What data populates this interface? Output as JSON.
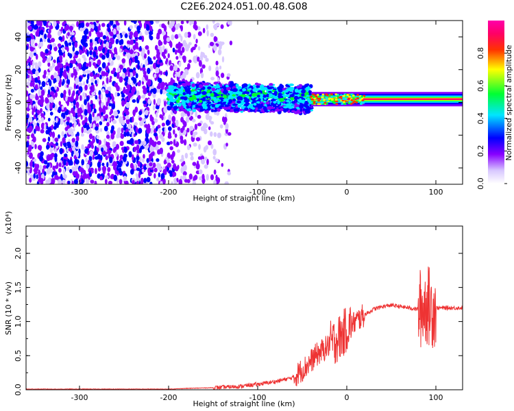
{
  "title": "C2E6.2024.051.00.48.G08",
  "chart_data": [
    {
      "type": "heatmap",
      "xlabel": "Height of straight line (km)",
      "ylabel": "Frequency (Hz)",
      "xlim": [
        -360,
        130
      ],
      "ylim": [
        -50,
        50
      ],
      "x_ticks": [
        -300,
        -200,
        -100,
        0,
        100
      ],
      "y_ticks": [
        -40,
        -20,
        0,
        20,
        40
      ],
      "colorbar": {
        "label": "Normalized spectral amplitude",
        "range": [
          0,
          1
        ],
        "ticks": [
          0.0,
          0.2,
          0.4,
          0.6,
          0.8
        ],
        "colormap": "rainbow (white-violet-blue-cyan-green-yellow-red-magenta)"
      },
      "features": [
        {
          "x_range": [
            -360,
            -170
          ],
          "freq_range": [
            -50,
            50
          ],
          "amplitude": [
            0.02,
            0.25
          ]
        },
        {
          "x_range": [
            -200,
            -40
          ],
          "freq_center": 4,
          "freq_halfwidth": 7,
          "amplitude": [
            0.2,
            0.55
          ]
        },
        {
          "x_range": [
            -40,
            130
          ],
          "freq_center": 2,
          "freq_halfwidth": 2,
          "amplitude": [
            0.6,
            0.95
          ]
        }
      ]
    },
    {
      "type": "line",
      "xlabel": "Height of straight line (km)",
      "ylabel": "SNR (10 * v/v)",
      "yscale_label": "(x10⁴)",
      "xlim": [
        -360,
        130
      ],
      "ylim": [
        0,
        2.4
      ],
      "x_ticks": [
        -300,
        -200,
        -100,
        0,
        100
      ],
      "y_ticks": [
        0.0,
        0.5,
        1.0,
        1.5,
        2.0
      ],
      "color": "#ee3333",
      "series": [
        {
          "x": [
            -360,
            -300,
            -250,
            -200,
            -180,
            -150,
            -120,
            -100,
            -80,
            -60,
            -45,
            -35,
            -25,
            -15,
            -10,
            -5,
            0,
            10,
            20,
            30,
            40,
            50,
            60,
            70,
            80,
            85,
            90,
            95,
            100,
            110,
            120,
            130
          ],
          "values": [
            0.01,
            0.01,
            0.01,
            0.01,
            0.02,
            0.03,
            0.05,
            0.08,
            0.12,
            0.18,
            0.35,
            0.5,
            0.6,
            0.7,
            0.75,
            0.8,
            0.9,
            1.0,
            1.1,
            1.18,
            1.22,
            1.24,
            1.22,
            1.2,
            1.18,
            1.2,
            1.25,
            1.2,
            1.2,
            1.2,
            1.2,
            1.2
          ]
        }
      ]
    }
  ]
}
